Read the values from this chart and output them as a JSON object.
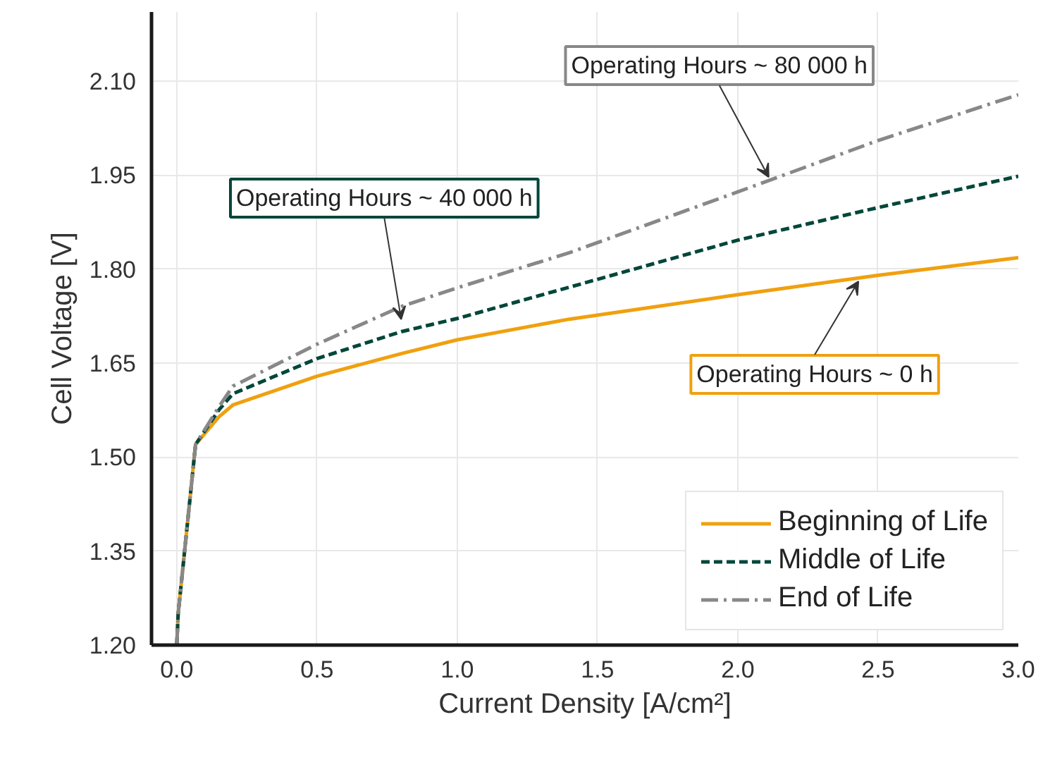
{
  "chart_data": {
    "type": "line",
    "xlabel": "Current Density [A/cm²]",
    "ylabel": "Cell Voltage [V]",
    "xlim": [
      -0.09,
      3.0
    ],
    "ylim": [
      1.2,
      2.21
    ],
    "xticks": [
      {
        "value": 0,
        "label": "0.0"
      },
      0.5,
      {
        "value": 1,
        "label": "1.0"
      },
      1.5,
      {
        "value": 2,
        "label": "2.0"
      },
      2.5,
      {
        "value": 3,
        "label": "3.0"
      }
    ],
    "yticks": [
      {
        "value": 1.2,
        "label": "1.20"
      },
      1.35,
      {
        "value": 1.5,
        "label": "1.50"
      },
      1.65,
      {
        "value": 1.8,
        "label": "1.80"
      },
      1.95,
      {
        "value": 2.1,
        "label": "2.10"
      }
    ],
    "x": [
      0.0,
      0.005,
      0.067,
      0.15,
      0.2,
      0.5,
      0.8,
      1.0,
      1.4,
      2.0,
      2.5,
      3.0
    ],
    "series": [
      {
        "name": "Beginning of Life",
        "color": "#f0a00f",
        "line_style": "solid",
        "values": [
          1.2,
          1.25,
          1.52,
          1.564,
          1.583,
          1.629,
          1.665,
          1.687,
          1.72,
          1.759,
          1.79,
          1.818
        ]
      },
      {
        "name": "Middle of Life",
        "color": "#00473a",
        "line_style": "dashed",
        "values": [
          1.2,
          1.25,
          1.52,
          1.575,
          1.601,
          1.657,
          1.7,
          1.721,
          1.771,
          1.846,
          1.898,
          1.948
        ]
      },
      {
        "name": "End of Life",
        "color": "#888888",
        "line_style": "dashdot",
        "values": [
          1.2,
          1.25,
          1.52,
          1.58,
          1.613,
          1.68,
          1.74,
          1.77,
          1.826,
          1.923,
          2.005,
          2.078
        ]
      }
    ],
    "annotations": [
      {
        "text": "Operating Hours ~ 0 h",
        "x": 2.43,
        "y": 1.787
      },
      {
        "text": "Operating Hours ~ 40 000 h",
        "x": 0.8,
        "y": 1.713
      },
      {
        "text": "Operating Hours ~ 80 000 h",
        "x": 2.11,
        "y": 1.94
      }
    ],
    "grid": true,
    "legend": "bottom right"
  }
}
